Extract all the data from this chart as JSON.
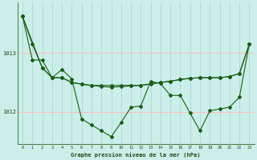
{
  "bg_color": "#cceee8",
  "grid_color_v": "#aadddd",
  "grid_color_h": "#ffbbbb",
  "line_color": "#1a5c1a",
  "xlabel": "Graphe pression niveau de la mer (hPa)",
  "yticks": [
    1012,
    1013
  ],
  "xticks": [
    0,
    1,
    2,
    3,
    4,
    5,
    6,
    7,
    8,
    9,
    10,
    11,
    12,
    13,
    14,
    15,
    16,
    17,
    18,
    19,
    20,
    21,
    22,
    23
  ],
  "ylim": [
    1011.45,
    1013.85
  ],
  "xlim": [
    -0.5,
    23.5
  ],
  "series1": {
    "x": [
      0,
      1,
      2,
      3,
      4,
      5,
      6,
      7,
      8,
      9,
      10,
      11,
      12,
      13,
      14,
      15,
      16,
      17,
      18,
      19,
      20,
      21,
      22,
      23
    ],
    "y": [
      1013.62,
      1013.15,
      1012.75,
      1012.58,
      1012.58,
      1012.5,
      1012.47,
      1012.45,
      1012.43,
      1012.42,
      1012.43,
      1012.44,
      1012.45,
      1012.47,
      1012.5,
      1012.52,
      1012.55,
      1012.57,
      1012.58,
      1012.58,
      1012.58,
      1012.6,
      1012.65,
      1013.15
    ]
  },
  "series2": {
    "x": [
      0,
      1,
      2,
      3,
      4,
      5,
      6,
      7,
      8,
      9,
      10,
      11,
      12,
      13,
      14,
      15,
      16,
      17,
      18,
      19,
      20,
      21,
      22,
      23
    ],
    "y": [
      1013.62,
      1012.88,
      1012.88,
      1012.58,
      1012.72,
      1012.56,
      1011.88,
      1011.78,
      1011.68,
      1011.58,
      1011.82,
      1012.08,
      1012.1,
      1012.52,
      1012.48,
      1012.28,
      1012.28,
      1011.98,
      1011.68,
      1012.02,
      1012.05,
      1012.08,
      1012.25,
      1013.15
    ]
  },
  "series3": {
    "x": [
      0,
      2,
      3,
      4,
      5,
      6,
      7,
      8,
      9,
      10,
      11,
      12,
      13,
      14,
      15,
      16,
      17,
      18,
      19,
      20,
      21,
      22,
      23
    ],
    "y": [
      1013.62,
      1012.75,
      1012.58,
      1012.58,
      1012.5,
      1012.47,
      1012.45,
      1012.45,
      1012.45,
      1012.45,
      1012.45,
      1012.45,
      1012.48,
      1012.5,
      1012.52,
      1012.55,
      1012.57,
      1012.58,
      1012.58,
      1012.58,
      1012.6,
      1012.65,
      1013.15
    ]
  }
}
